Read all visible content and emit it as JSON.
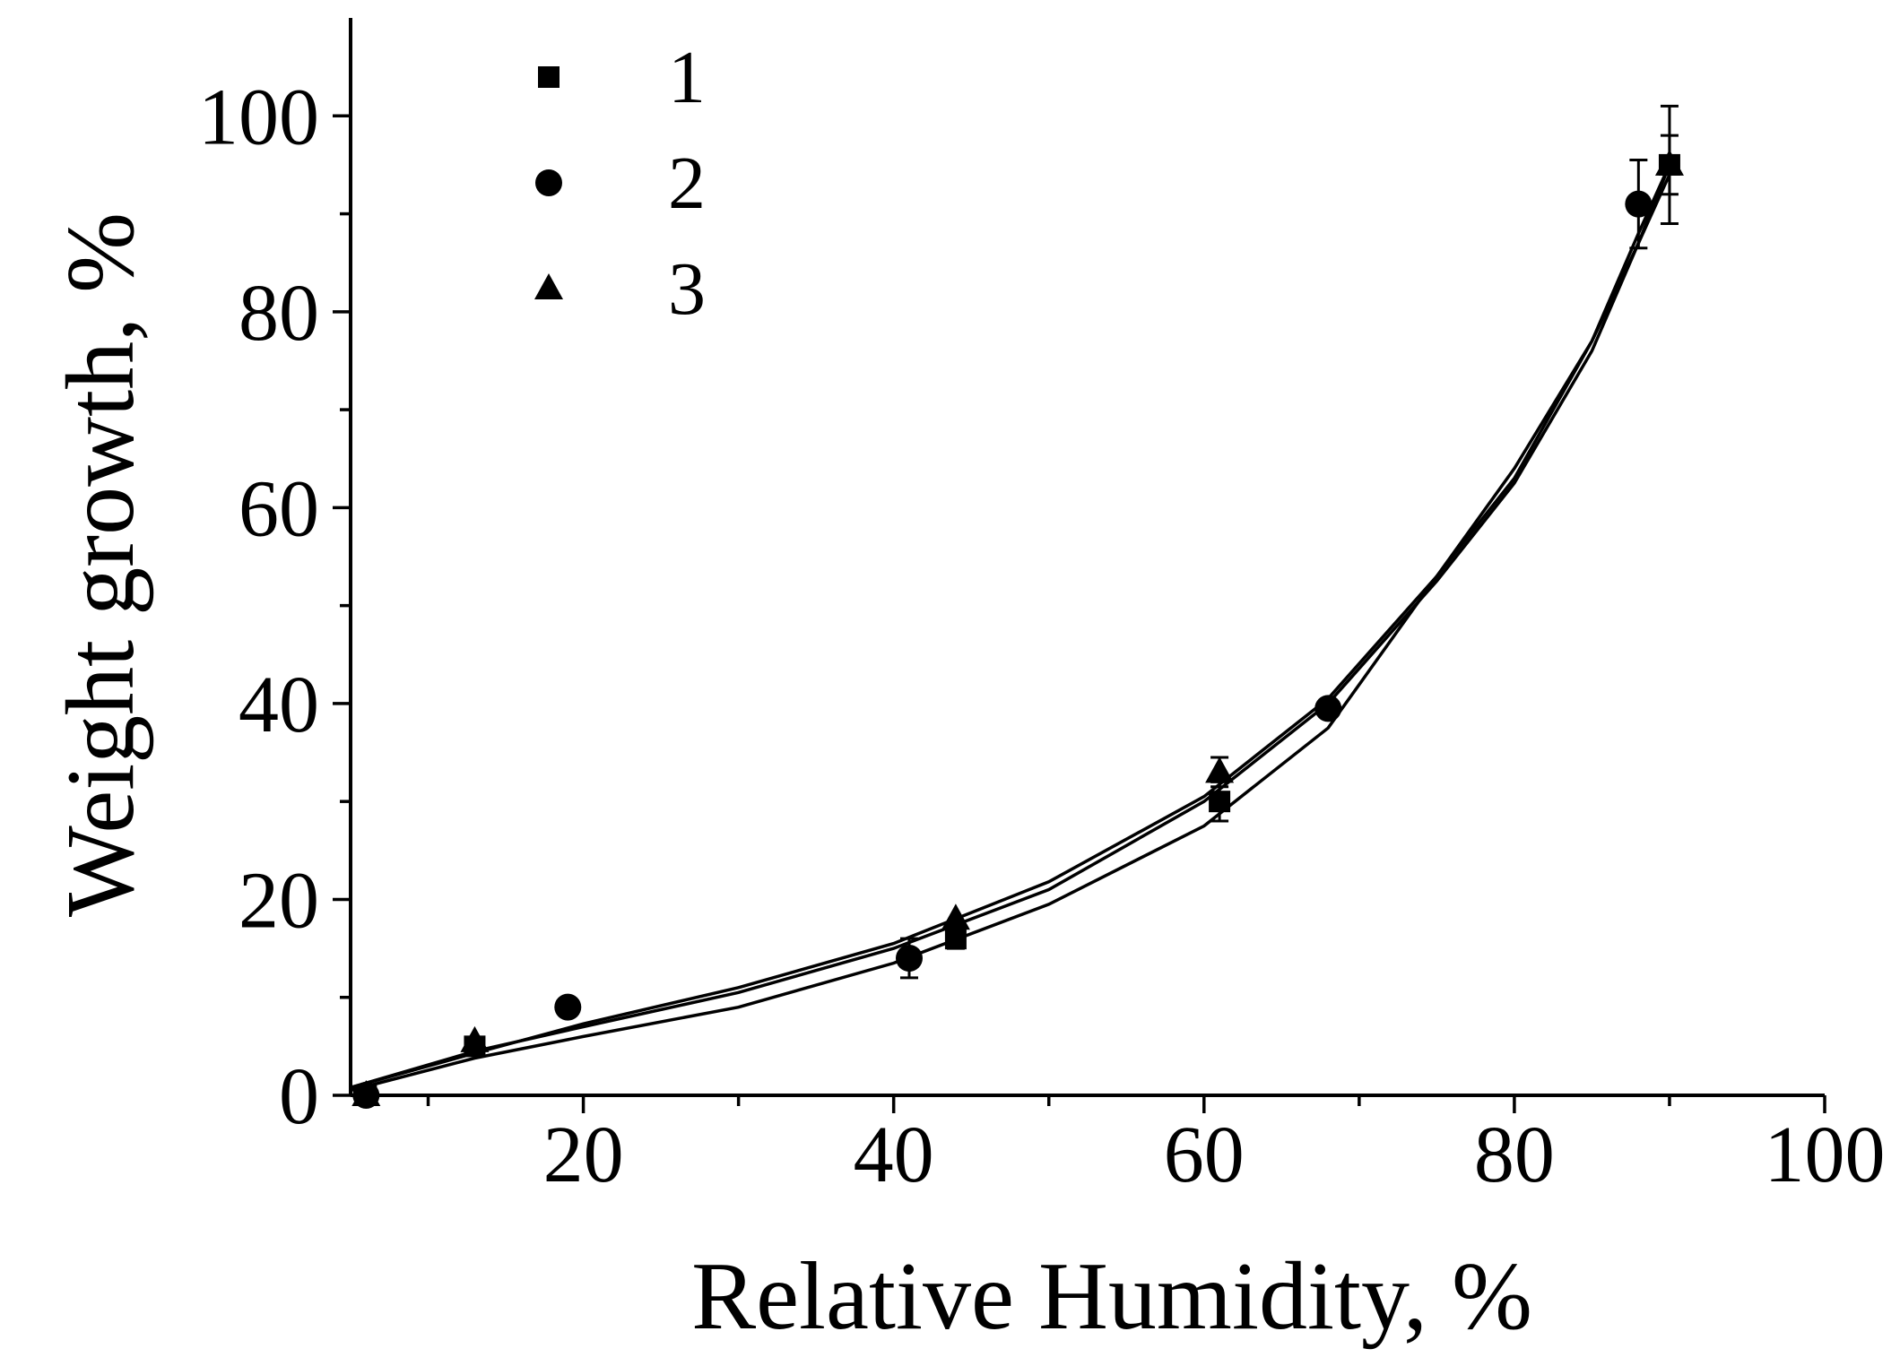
{
  "chart_data": {
    "type": "scatter",
    "title": "",
    "xlabel": "Relative Humidity, %",
    "ylabel": "Weight growth, %",
    "xlim": [
      5,
      100
    ],
    "ylim": [
      0,
      110
    ],
    "xticks": [
      20,
      40,
      60,
      80,
      100
    ],
    "yticks": [
      0,
      20,
      40,
      60,
      80,
      100
    ],
    "xminor": [
      10,
      30,
      50,
      70,
      90
    ],
    "yminor": [
      10,
      30,
      50,
      70,
      90
    ],
    "grid": false,
    "legend": "top-left",
    "series": [
      {
        "name": "1",
        "marker": "square",
        "points": [
          {
            "x": 6,
            "y": 0
          },
          {
            "x": 13,
            "y": 5
          },
          {
            "x": 44,
            "y": 16,
            "err": 1
          },
          {
            "x": 61,
            "y": 30,
            "err": 2
          },
          {
            "x": 90,
            "y": 95,
            "err": 3
          }
        ],
        "fit": [
          [
            5,
            0.5
          ],
          [
            13,
            3.8
          ],
          [
            20,
            6
          ],
          [
            30,
            9
          ],
          [
            40,
            13.5
          ],
          [
            50,
            19.5
          ],
          [
            60,
            27.5
          ],
          [
            68,
            37.5
          ],
          [
            75,
            53
          ],
          [
            80,
            64
          ],
          [
            85,
            77
          ],
          [
            88,
            87
          ],
          [
            90,
            95
          ]
        ]
      },
      {
        "name": "2",
        "marker": "circle",
        "points": [
          {
            "x": 6,
            "y": 0
          },
          {
            "x": 19,
            "y": 9
          },
          {
            "x": 41,
            "y": 14,
            "err": 2
          },
          {
            "x": 68,
            "y": 39.5
          },
          {
            "x": 88,
            "y": 91,
            "err": 4.5
          }
        ],
        "fit": [
          [
            5,
            0.8
          ],
          [
            13,
            4.5
          ],
          [
            20,
            7
          ],
          [
            30,
            10.5
          ],
          [
            40,
            15
          ],
          [
            50,
            21
          ],
          [
            60,
            30
          ],
          [
            68,
            40
          ],
          [
            75,
            52.5
          ],
          [
            80,
            62.5
          ],
          [
            85,
            76
          ],
          [
            88,
            87
          ],
          [
            90,
            94
          ]
        ]
      },
      {
        "name": "3",
        "marker": "triangle",
        "points": [
          {
            "x": 6,
            "y": 0
          },
          {
            "x": 13,
            "y": 5.5
          },
          {
            "x": 44,
            "y": 18
          },
          {
            "x": 61,
            "y": 33,
            "err": 1.5
          },
          {
            "x": 90,
            "y": 95,
            "err": 6
          }
        ],
        "fit": [
          [
            5,
            0.8
          ],
          [
            13,
            4.3
          ],
          [
            20,
            7.3
          ],
          [
            30,
            11
          ],
          [
            40,
            15.5
          ],
          [
            50,
            21.8
          ],
          [
            60,
            30.5
          ],
          [
            68,
            40.5
          ],
          [
            75,
            53
          ],
          [
            80,
            63
          ],
          [
            85,
            77
          ],
          [
            88,
            88
          ],
          [
            90,
            95
          ]
        ]
      }
    ]
  }
}
